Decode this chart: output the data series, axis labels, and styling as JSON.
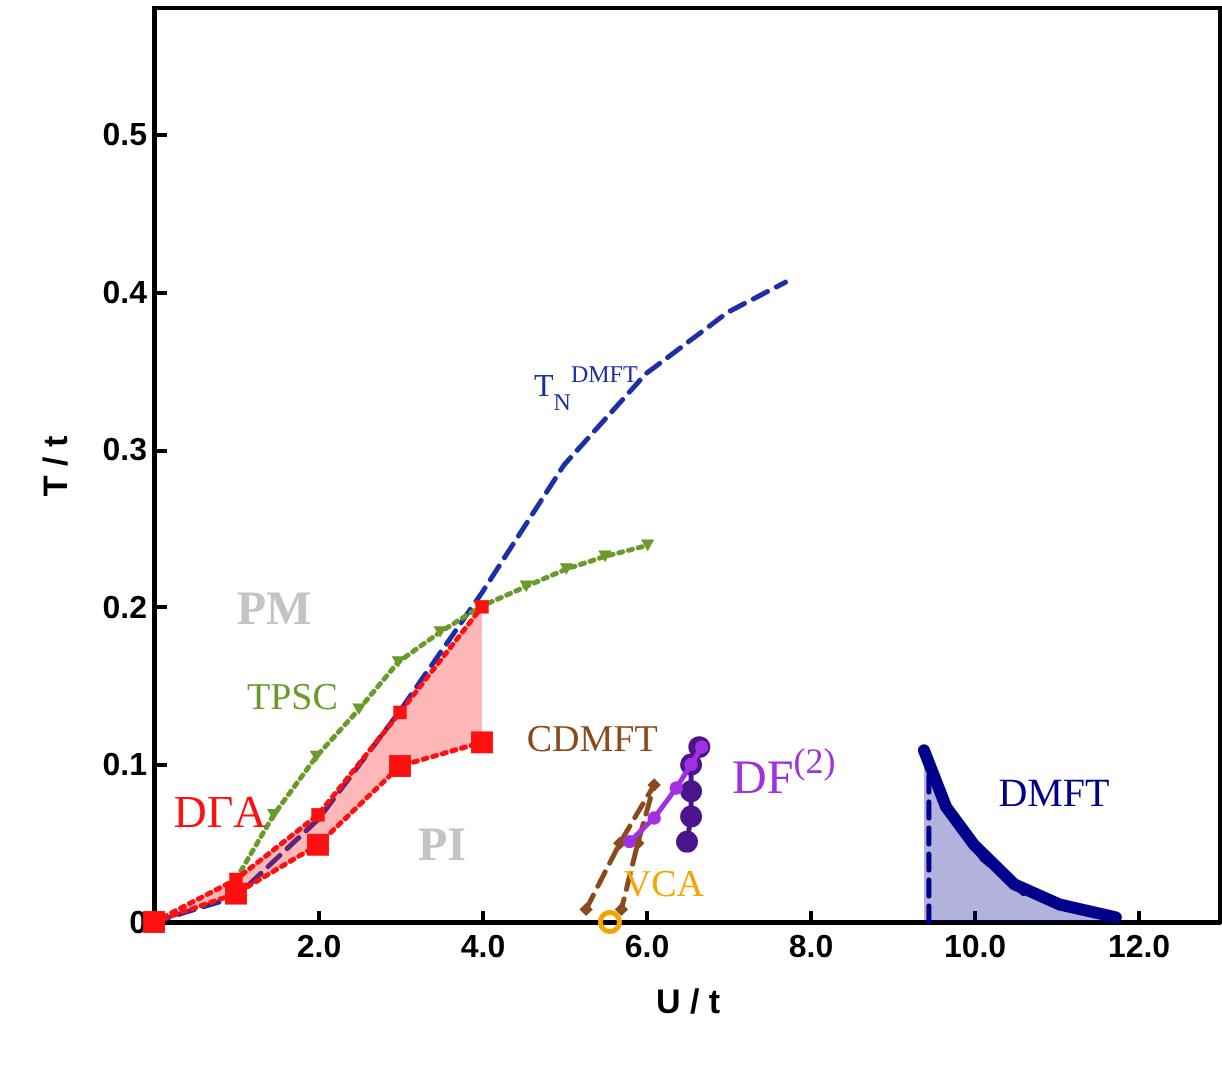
{
  "chart_data": {
    "type": "line",
    "xlabel": "U / t",
    "ylabel": "T / t",
    "xlim": [
      0,
      13
    ],
    "ylim": [
      0,
      0.58
    ],
    "xticks": [
      {
        "value": 2,
        "label": "2.0"
      },
      {
        "value": 4,
        "label": "4.0"
      },
      {
        "value": 6,
        "label": "6.0"
      },
      {
        "value": 8,
        "label": "8.0"
      },
      {
        "value": 10,
        "label": "10.0"
      },
      {
        "value": 12,
        "label": "12.0"
      }
    ],
    "yticks": [
      0,
      0.1,
      0.2,
      0.3,
      0.4,
      0.5
    ],
    "annotations": [
      "PM",
      "PI"
    ],
    "series": [
      {
        "name": "T$_{N}$$^{DMFT}$",
        "type": "line",
        "color": "#1c2ea8",
        "line_style": "dashed",
        "marker": "none",
        "x": [
          0,
          1,
          2,
          3,
          4,
          5,
          6,
          7,
          7.7
        ],
        "values": [
          0,
          0.016,
          0.065,
          0.134,
          0.209,
          0.29,
          0.348,
          0.387,
          0.406
        ]
      },
      {
        "name": "TPSC",
        "type": "line",
        "color": "#6a9a2a",
        "line_style": "dotted",
        "marker": "triangle",
        "x": [
          1,
          1.46,
          1.98,
          2.5,
          2.98,
          3.49,
          3.98,
          4.54,
          5.03,
          5.5,
          6.02
        ],
        "values": [
          0.027,
          0.068,
          0.105,
          0.135,
          0.165,
          0.184,
          0.2,
          0.213,
          0.224,
          0.232,
          0.239
        ]
      },
      {
        "name": "DΓA",
        "type": "line",
        "color": "#ff1010",
        "line_style": "dotted",
        "marker": "square",
        "x": [
          0,
          1,
          2,
          3,
          4
        ],
        "values": [
          0,
          0.027,
          0.068,
          0.133,
          0.2
        ],
        "lower": [
          0,
          0.018,
          0.049,
          0.099,
          0.114
        ],
        "upper": [
          0,
          0.027,
          0.068,
          0.133,
          0.2
        ]
      },
      {
        "type": "line",
        "color": "#ff1010",
        "line_style": "dotted",
        "marker": "square",
        "x": [
          0,
          1,
          2,
          3,
          4
        ],
        "values": [
          0,
          0.018,
          0.049,
          0.099,
          0.114
        ]
      },
      {
        "name": "CDMFT",
        "type": "line",
        "color": "#8b4a1c",
        "line_style": "dashed",
        "marker": "diamond",
        "x": [
          5.27,
          5.68,
          6.1,
          5.9,
          5.7
        ],
        "values": [
          0.008,
          0.05,
          0.087,
          0.05,
          0.008
        ]
      },
      {
        "name": "VCA",
        "type": "scatter",
        "color": "#f5a500",
        "marker": "circle",
        "x": [
          5.56
        ],
        "values": [
          0.0
        ]
      },
      {
        "type": "line",
        "color": "#4a148c",
        "line_style": "solid",
        "marker": "circle",
        "x": [
          6.5,
          6.55,
          6.55,
          6.55,
          6.65
        ],
        "values": [
          0.051,
          0.067,
          0.083,
          0.1,
          0.111
        ]
      },
      {
        "name": "DF$^{(2)}$",
        "type": "line",
        "color": "#a030e0",
        "line_style": "solid",
        "marker": "circle",
        "x": [
          5.8,
          6.1,
          6.37,
          6.55,
          6.68
        ],
        "values": [
          0.051,
          0.066,
          0.085,
          0.1,
          0.111
        ]
      },
      {
        "name": "DMFT",
        "type": "area",
        "color": "#00008b",
        "line_style": "solid",
        "marker": "none",
        "x": [
          9.39,
          9.66,
          10.0,
          10.49,
          11.05,
          11.73
        ],
        "values": [
          0.109,
          0.073,
          0.049,
          0.024,
          0.011,
          0.003
        ]
      },
      {
        "type": "line",
        "color": "#00008b",
        "line_style": "dashed",
        "marker": "none",
        "x": [
          9.45,
          9.45,
          9.7,
          10.1,
          10.6
        ],
        "values": [
          0,
          0.1,
          0.068,
          0.04,
          0.018
        ]
      }
    ]
  }
}
